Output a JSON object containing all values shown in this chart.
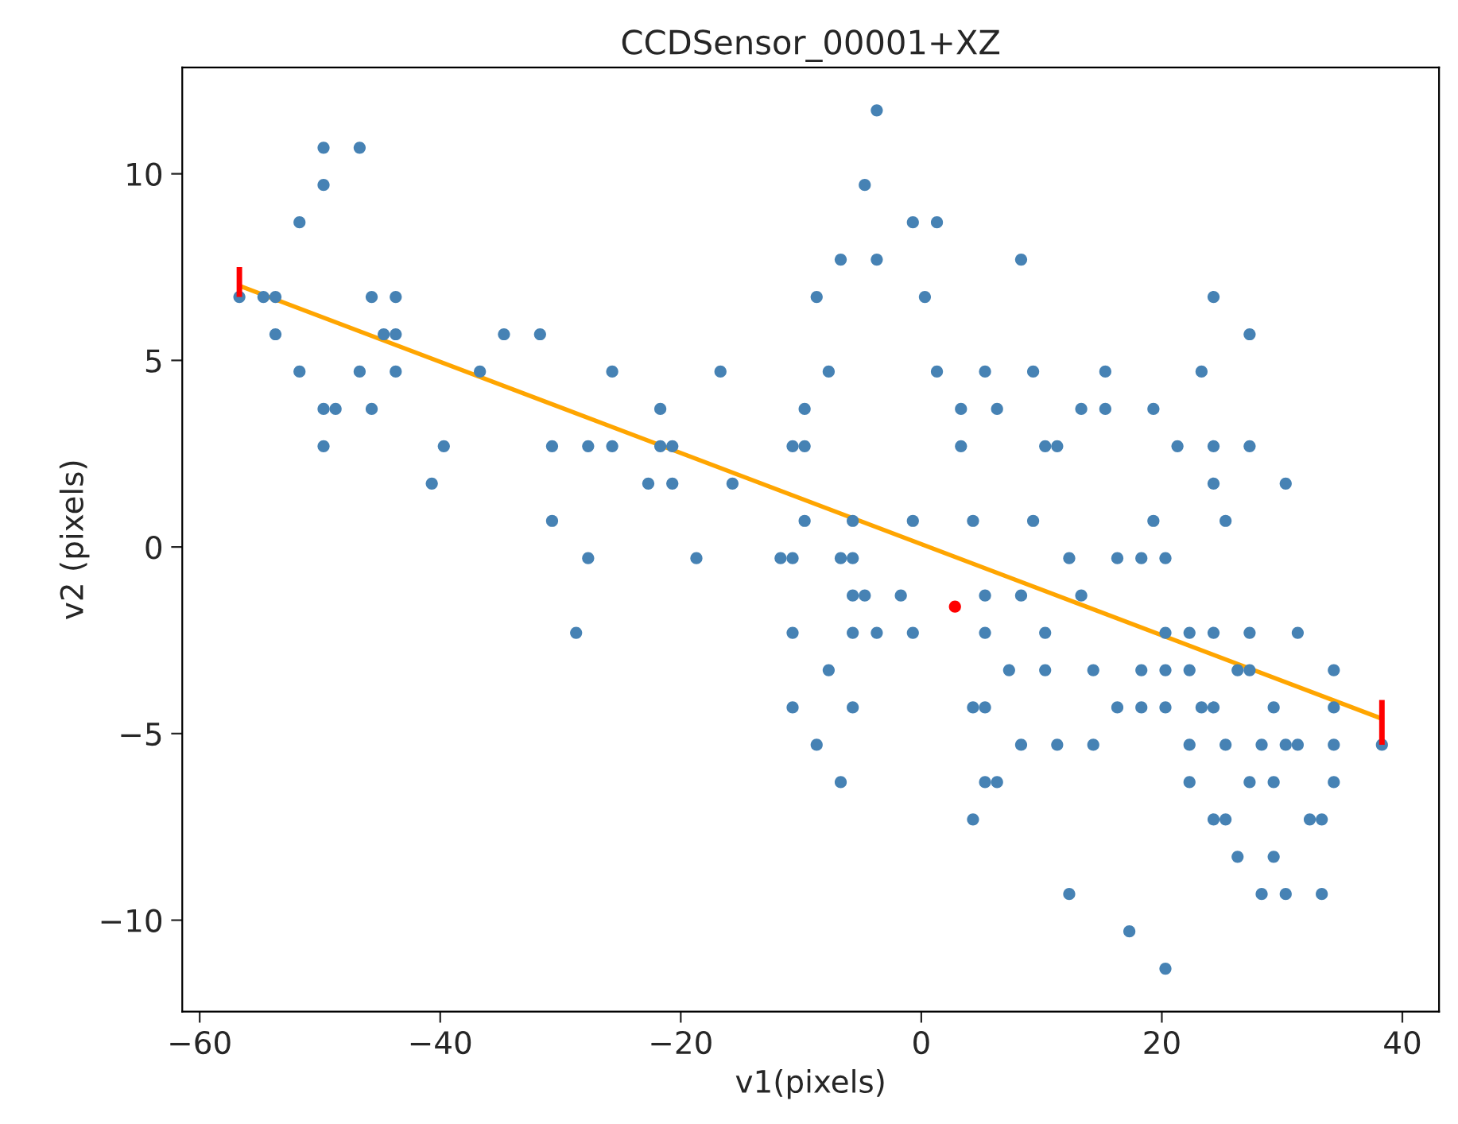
{
  "chart_data": {
    "type": "scatter",
    "title": "CCDSensor_00001+XZ",
    "xlabel": "v1(pixels)",
    "ylabel": "v2 (pixels)",
    "xlim": [
      -61.45,
      43.05
    ],
    "ylim": [
      -12.45,
      12.85
    ],
    "xticks": [
      {
        "value": -60,
        "label": "−60"
      },
      {
        "value": -40,
        "label": "−40"
      },
      {
        "value": -20,
        "label": "−20"
      },
      0,
      20,
      40
    ],
    "yticks": [
      {
        "value": -10,
        "label": "−10"
      },
      {
        "value": -5,
        "label": "−5"
      },
      0,
      5,
      10
    ],
    "grid": false,
    "marker": "circle",
    "series": [
      {
        "color": "#4682b4",
        "x": [
          -3.7,
          -49.7,
          -46.7,
          -49.7,
          -4.7,
          -51.7,
          -0.7,
          1.3,
          -6.7,
          -3.7,
          8.3,
          -56.7,
          -54.7,
          -53.7,
          -45.7,
          -43.7,
          -8.7,
          0.3,
          24.3,
          -53.7,
          -44.7,
          -43.7,
          -34.7,
          -31.7,
          27.3,
          -51.7,
          -46.7,
          -43.7,
          -36.7,
          -25.7,
          -16.7,
          -7.7,
          1.3,
          5.3,
          9.3,
          15.3,
          23.3,
          -49.7,
          -48.7,
          -45.7,
          -21.7,
          -9.7,
          3.3,
          6.3,
          13.3,
          15.3,
          19.3,
          -49.7,
          -39.7,
          -30.7,
          -27.7,
          -25.7,
          -21.7,
          -20.7,
          -10.7,
          -9.7,
          3.3,
          10.3,
          11.3,
          21.3,
          24.3,
          27.3,
          -40.7,
          -22.7,
          -20.7,
          -15.7,
          24.3,
          30.3,
          -30.7,
          -9.7,
          -5.7,
          -0.7,
          4.3,
          9.3,
          19.3,
          25.3,
          -27.7,
          -18.7,
          -11.7,
          -10.7,
          -6.7,
          -5.7,
          12.3,
          16.3,
          18.3,
          20.3,
          -5.7,
          -4.7,
          -1.7,
          5.3,
          8.3,
          13.3,
          -28.7,
          -10.7,
          -5.7,
          -3.7,
          -0.7,
          5.3,
          10.3,
          20.3,
          22.3,
          24.3,
          27.3,
          31.3,
          -7.7,
          7.3,
          10.3,
          14.3,
          18.3,
          20.3,
          22.3,
          26.3,
          27.3,
          34.3,
          -10.7,
          -5.7,
          4.3,
          5.3,
          16.3,
          18.3,
          20.3,
          23.3,
          24.3,
          29.3,
          34.3,
          -8.7,
          8.3,
          11.3,
          14.3,
          22.3,
          25.3,
          28.3,
          30.3,
          31.3,
          34.3,
          38.3,
          -6.7,
          5.3,
          6.3,
          22.3,
          27.3,
          29.3,
          34.3,
          4.3,
          24.3,
          25.3,
          32.3,
          33.3,
          26.3,
          29.3,
          12.3,
          28.3,
          30.3,
          33.3,
          17.3,
          20.3
        ],
        "values": [
          11.7,
          10.7,
          10.7,
          9.7,
          9.7,
          8.7,
          8.7,
          8.7,
          7.7,
          7.7,
          7.7,
          6.7,
          6.7,
          6.7,
          6.7,
          6.7,
          6.7,
          6.7,
          6.7,
          5.7,
          5.7,
          5.7,
          5.7,
          5.7,
          5.7,
          4.7,
          4.7,
          4.7,
          4.7,
          4.7,
          4.7,
          4.7,
          4.7,
          4.7,
          4.7,
          4.7,
          4.7,
          3.7,
          3.7,
          3.7,
          3.7,
          3.7,
          3.7,
          3.7,
          3.7,
          3.7,
          3.7,
          2.7,
          2.7,
          2.7,
          2.7,
          2.7,
          2.7,
          2.7,
          2.7,
          2.7,
          2.7,
          2.7,
          2.7,
          2.7,
          2.7,
          2.7,
          1.7,
          1.7,
          1.7,
          1.7,
          1.7,
          1.7,
          0.7,
          0.7,
          0.7,
          0.7,
          0.7,
          0.7,
          0.7,
          0.7,
          -0.3,
          -0.3,
          -0.3,
          -0.3,
          -0.3,
          -0.3,
          -0.3,
          -0.3,
          -0.3,
          -0.3,
          -1.3,
          -1.3,
          -1.3,
          -1.3,
          -1.3,
          -1.3,
          -2.3,
          -2.3,
          -2.3,
          -2.3,
          -2.3,
          -2.3,
          -2.3,
          -2.3,
          -2.3,
          -2.3,
          -2.3,
          -2.3,
          -3.3,
          -3.3,
          -3.3,
          -3.3,
          -3.3,
          -3.3,
          -3.3,
          -3.3,
          -3.3,
          -3.3,
          -4.3,
          -4.3,
          -4.3,
          -4.3,
          -4.3,
          -4.3,
          -4.3,
          -4.3,
          -4.3,
          -4.3,
          -4.3,
          -5.3,
          -5.3,
          -5.3,
          -5.3,
          -5.3,
          -5.3,
          -5.3,
          -5.3,
          -5.3,
          -5.3,
          -5.3,
          -6.3,
          -6.3,
          -6.3,
          -6.3,
          -6.3,
          -6.3,
          -6.3,
          -7.3,
          -7.3,
          -7.3,
          -7.3,
          -7.3,
          -8.3,
          -8.3,
          -9.3,
          -9.3,
          -9.3,
          -9.3,
          -10.3,
          -11.3
        ]
      },
      {
        "type": "line",
        "marker": "none",
        "color": "#ffa500",
        "x": [
          -56.7,
          38.3
        ],
        "values": [
          7.0,
          -4.6
        ],
        "errors": [
          [
            6.7,
            7.5
          ],
          [
            -5.3,
            -4.1
          ]
        ]
      },
      {
        "color": "#ff0000",
        "x": [
          2.8
        ],
        "values": [
          -1.6
        ]
      }
    ]
  }
}
